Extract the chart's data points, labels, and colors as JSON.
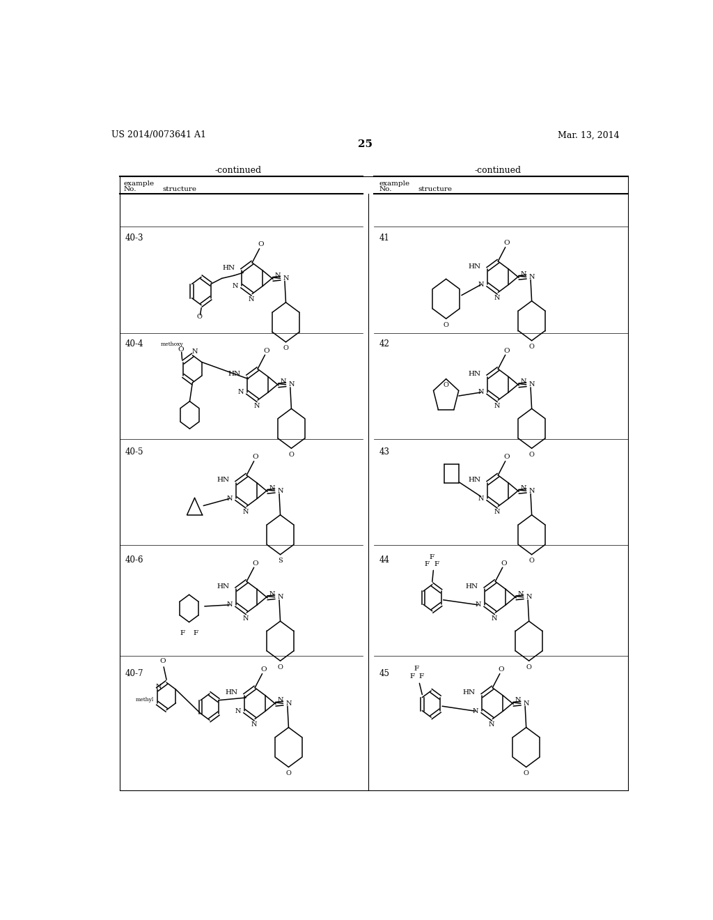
{
  "page_number": "25",
  "patent_left": "US 2014/0073641 A1",
  "patent_right": "Mar. 13, 2014",
  "background_color": "#ffffff",
  "text_color": "#000000",
  "table_header_left": "-continued",
  "table_header_right": "-continued"
}
